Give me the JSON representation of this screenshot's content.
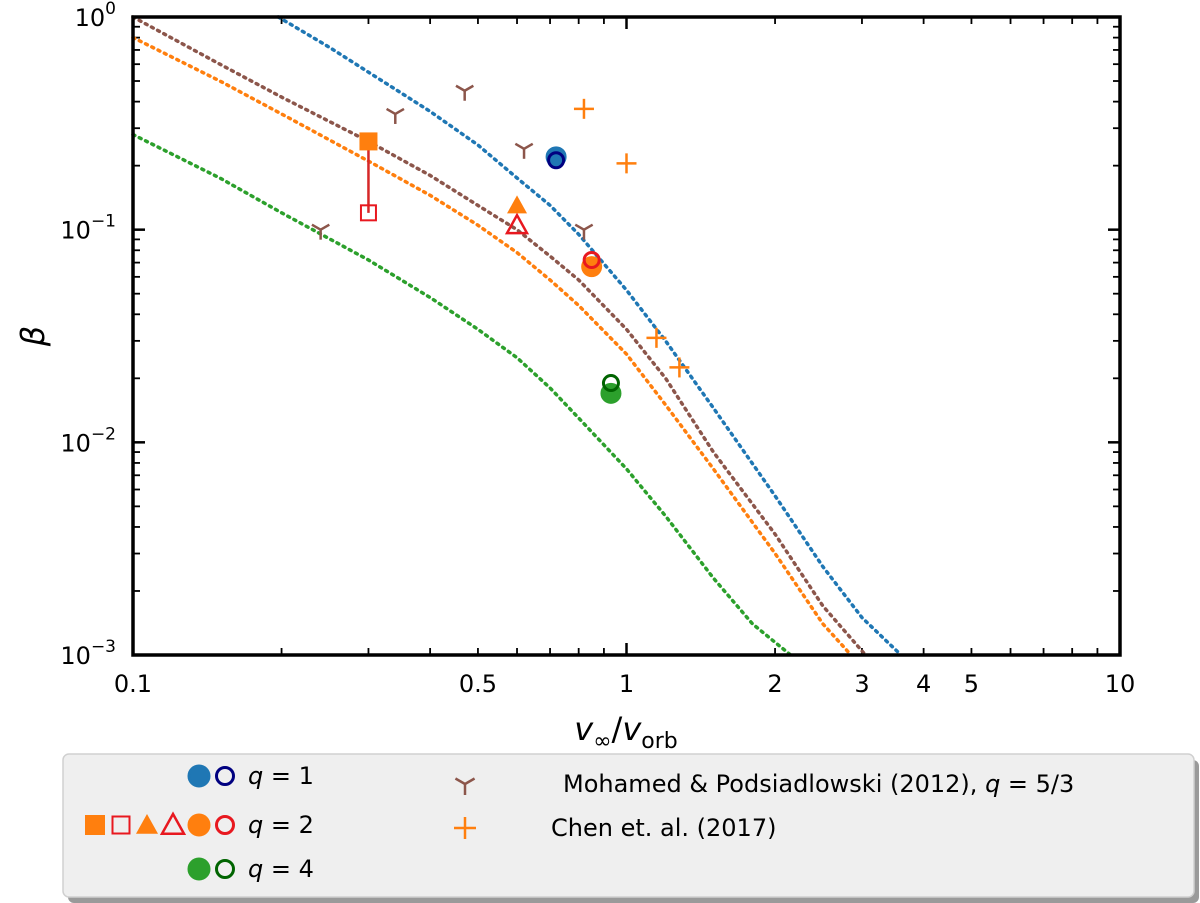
{
  "chart_data": {
    "type": "scatter",
    "x_scale": "log",
    "y_scale": "log",
    "xlim": [
      0.1,
      10
    ],
    "ylim": [
      0.001,
      1
    ],
    "xlabel": "v∞/vorb",
    "ylabel": "β",
    "x_ticks": [
      {
        "value": 0.1,
        "label": "0.1"
      },
      {
        "value": 0.5,
        "label": "0.5"
      },
      {
        "value": 1,
        "label": "1"
      },
      {
        "value": 2,
        "label": "2"
      },
      {
        "value": 3,
        "label": "3"
      },
      {
        "value": 4,
        "label": "4"
      },
      {
        "value": 5,
        "label": "5"
      },
      {
        "value": 10,
        "label": "10"
      }
    ],
    "y_ticks": [
      {
        "value": 0.001,
        "base": "10",
        "exp": "−3"
      },
      {
        "value": 0.01,
        "base": "10",
        "exp": "−2"
      },
      {
        "value": 0.1,
        "base": "10",
        "exp": "−1"
      },
      {
        "value": 1,
        "base": "10",
        "exp": "0"
      }
    ],
    "curves": [
      {
        "color": "#1f77b4",
        "style": "dotted",
        "points": [
          [
            0.197,
            1.0
          ],
          [
            0.25,
            0.72
          ],
          [
            0.3,
            0.55
          ],
          [
            0.4,
            0.36
          ],
          [
            0.5,
            0.25
          ],
          [
            0.6,
            0.175
          ],
          [
            0.7,
            0.13
          ],
          [
            0.8,
            0.095
          ],
          [
            1.0,
            0.052
          ],
          [
            1.2,
            0.03
          ],
          [
            1.5,
            0.0145
          ],
          [
            2.0,
            0.0056
          ],
          [
            2.5,
            0.0026
          ],
          [
            3.0,
            0.0015
          ],
          [
            3.6,
            0.001
          ]
        ]
      },
      {
        "color": "#8c564b",
        "style": "dotted",
        "points": [
          [
            0.1,
            1.0
          ],
          [
            0.15,
            0.6
          ],
          [
            0.2,
            0.42
          ],
          [
            0.3,
            0.26
          ],
          [
            0.4,
            0.18
          ],
          [
            0.5,
            0.13
          ],
          [
            0.6,
            0.1
          ],
          [
            0.7,
            0.075
          ],
          [
            0.8,
            0.058
          ],
          [
            1.0,
            0.034
          ],
          [
            1.2,
            0.02
          ],
          [
            1.5,
            0.009
          ],
          [
            2.0,
            0.0037
          ],
          [
            2.5,
            0.0017
          ],
          [
            3.05,
            0.001
          ]
        ]
      },
      {
        "color": "#ff7f0e",
        "style": "dotted",
        "points": [
          [
            0.1,
            0.8
          ],
          [
            0.15,
            0.5
          ],
          [
            0.2,
            0.35
          ],
          [
            0.3,
            0.21
          ],
          [
            0.4,
            0.145
          ],
          [
            0.5,
            0.105
          ],
          [
            0.6,
            0.078
          ],
          [
            0.7,
            0.058
          ],
          [
            0.8,
            0.044
          ],
          [
            1.0,
            0.026
          ],
          [
            1.2,
            0.015
          ],
          [
            1.5,
            0.0075
          ],
          [
            2.0,
            0.003
          ],
          [
            2.5,
            0.0014
          ],
          [
            2.85,
            0.001
          ]
        ]
      },
      {
        "color": "#2ca02c",
        "style": "dotted",
        "points": [
          [
            0.1,
            0.28
          ],
          [
            0.15,
            0.175
          ],
          [
            0.2,
            0.12
          ],
          [
            0.3,
            0.072
          ],
          [
            0.4,
            0.048
          ],
          [
            0.5,
            0.034
          ],
          [
            0.6,
            0.025
          ],
          [
            0.7,
            0.018
          ],
          [
            0.8,
            0.013
          ],
          [
            1.0,
            0.0075
          ],
          [
            1.2,
            0.0045
          ],
          [
            1.5,
            0.0023
          ],
          [
            1.8,
            0.0014
          ],
          [
            2.15,
            0.001
          ]
        ]
      }
    ],
    "connector": {
      "color": "#d62728",
      "from": [
        0.3,
        0.26
      ],
      "to": [
        0.3,
        0.12
      ]
    },
    "series": [
      {
        "group": "q1",
        "marker": "circle",
        "filled": true,
        "color": "#1f77b4",
        "points": [
          [
            0.72,
            0.22
          ]
        ]
      },
      {
        "group": "q1",
        "marker": "circle",
        "filled": false,
        "color": "#000080",
        "points": [
          [
            0.72,
            0.212
          ]
        ]
      },
      {
        "group": "q2",
        "marker": "square",
        "filled": true,
        "color": "#ff7f0e",
        "points": [
          [
            0.3,
            0.26
          ]
        ]
      },
      {
        "group": "q2",
        "marker": "square",
        "filled": false,
        "color": "#e8181f",
        "points": [
          [
            0.3,
            0.12
          ]
        ]
      },
      {
        "group": "q2",
        "marker": "triangle",
        "filled": true,
        "color": "#ff7f0e",
        "points": [
          [
            0.6,
            0.13
          ]
        ]
      },
      {
        "group": "q2",
        "marker": "triangle",
        "filled": false,
        "color": "#e8181f",
        "points": [
          [
            0.6,
            0.105
          ]
        ]
      },
      {
        "group": "q2",
        "marker": "circle",
        "filled": true,
        "color": "#ff7f0e",
        "points": [
          [
            0.85,
            0.067
          ]
        ]
      },
      {
        "group": "q2",
        "marker": "circle",
        "filled": false,
        "color": "#e8181f",
        "points": [
          [
            0.85,
            0.072
          ]
        ]
      },
      {
        "group": "q4",
        "marker": "circle",
        "filled": true,
        "color": "#2ca02c",
        "points": [
          [
            0.93,
            0.017
          ]
        ]
      },
      {
        "group": "q4",
        "marker": "circle",
        "filled": false,
        "color": "#006400",
        "points": [
          [
            0.93,
            0.019
          ]
        ]
      },
      {
        "group": "mohamed",
        "marker": "tri_down",
        "filled": false,
        "color": "#8c564b",
        "points": [
          [
            0.24,
            0.1
          ],
          [
            0.34,
            0.35
          ],
          [
            0.47,
            0.45
          ],
          [
            0.62,
            0.24
          ],
          [
            0.82,
            0.1
          ]
        ]
      },
      {
        "group": "chen",
        "marker": "plus",
        "filled": false,
        "color": "#ff7f0e",
        "points": [
          [
            0.82,
            0.37
          ],
          [
            1.0,
            0.205
          ],
          [
            1.15,
            0.031
          ],
          [
            1.28,
            0.0225
          ]
        ]
      }
    ],
    "legend": {
      "placement": "below plot",
      "entries": [
        {
          "symbols": [
            {
              "marker": "circle",
              "filled": true,
              "color": "#1f77b4"
            },
            {
              "marker": "circle",
              "filled": false,
              "color": "#000080"
            }
          ],
          "label_var": "q",
          "label_rest": " = 1"
        },
        {
          "symbols": [
            {
              "marker": "square",
              "filled": true,
              "color": "#ff7f0e"
            },
            {
              "marker": "square",
              "filled": false,
              "color": "#e8181f"
            },
            {
              "marker": "triangle",
              "filled": true,
              "color": "#ff7f0e"
            },
            {
              "marker": "triangle",
              "filled": false,
              "color": "#e8181f"
            },
            {
              "marker": "circle",
              "filled": true,
              "color": "#ff7f0e"
            },
            {
              "marker": "circle",
              "filled": false,
              "color": "#e8181f"
            }
          ],
          "label_var": "q",
          "label_rest": " = 2"
        },
        {
          "symbols": [
            {
              "marker": "circle",
              "filled": true,
              "color": "#2ca02c"
            },
            {
              "marker": "circle",
              "filled": false,
              "color": "#006400"
            }
          ],
          "label_var": "q",
          "label_rest": " = 4"
        },
        {
          "symbols": [
            {
              "marker": "tri_down",
              "filled": false,
              "color": "#8c564b"
            }
          ],
          "label": "Mohamed & Podsiadlowski (2012), ",
          "label_var": "q",
          "label_rest": " = 5/3"
        },
        {
          "symbols": [
            {
              "marker": "plus",
              "filled": false,
              "color": "#ff7f0e"
            }
          ],
          "label": "Chen et. al. (2017)"
        }
      ]
    }
  }
}
